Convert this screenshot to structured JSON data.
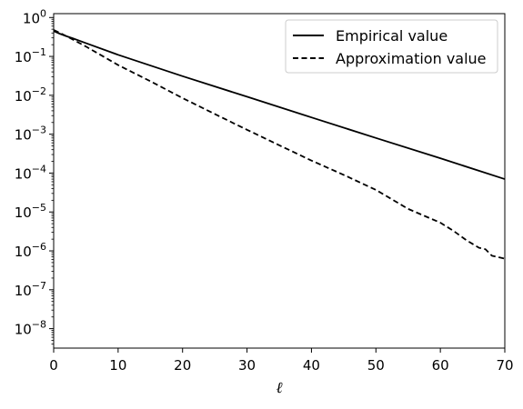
{
  "chart_data": {
    "type": "line",
    "xlabel": "ℓ",
    "ylabel": "",
    "xlim": [
      0,
      70
    ],
    "ylim_log10": [
      -8.5,
      0.1
    ],
    "y_scale": "log",
    "grid": false,
    "legend_placement": "top-right",
    "x_ticks": [
      0,
      10,
      20,
      30,
      40,
      50,
      60,
      70
    ],
    "x_tick_labels": [
      "0",
      "10",
      "20",
      "30",
      "40",
      "50",
      "60",
      "70"
    ],
    "y_tick_exponents": [
      0,
      -1,
      -2,
      -3,
      -4,
      -5,
      -6,
      -7,
      -8
    ],
    "series": [
      {
        "name": "Empirical value",
        "style": "solid",
        "color": "#000000",
        "x": [
          0,
          1,
          2,
          3,
          5,
          10,
          20,
          30,
          40,
          50,
          60,
          70
        ],
        "y": [
          0.45,
          0.38,
          0.33,
          0.29,
          0.22,
          0.11,
          0.031,
          0.0092,
          0.0027,
          0.0008,
          0.00024,
          7e-05
        ]
      },
      {
        "name": "Approximation value",
        "style": "dashed",
        "color": "#000000",
        "x": [
          0,
          1,
          2,
          3,
          5,
          10,
          15,
          20,
          25,
          30,
          35,
          40,
          45,
          50,
          55,
          60,
          62,
          64,
          66,
          67,
          68,
          70
        ],
        "y": [
          0.48,
          0.4,
          0.33,
          0.27,
          0.18,
          0.06,
          0.023,
          0.0085,
          0.0033,
          0.0013,
          0.00052,
          0.00021,
          9e-05,
          3.7e-05,
          1.2e-05,
          5.3e-06,
          3.3e-06,
          1.9e-06,
          1.2e-06,
          1.1e-06,
          7.5e-07,
          6.3e-07
        ]
      }
    ]
  }
}
